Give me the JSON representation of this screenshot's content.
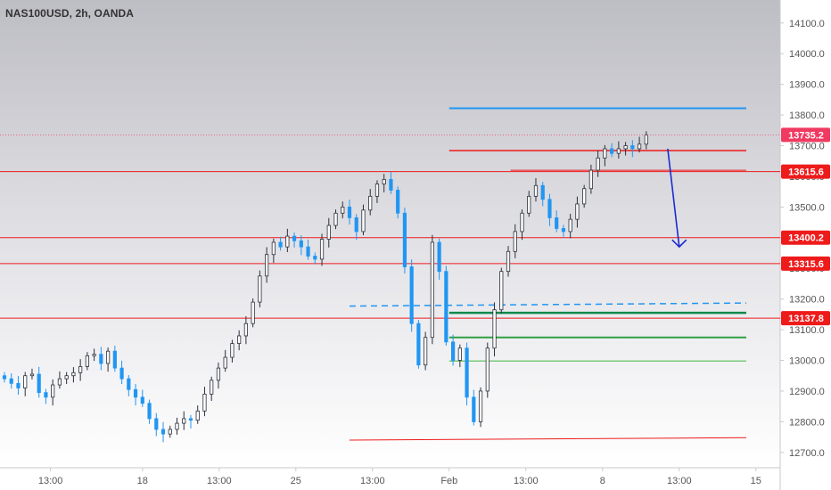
{
  "symbol_title": "NAS100USD, 2h, OANDA",
  "colors": {
    "up": "#2b2f3a",
    "down": "#2196f3",
    "red_line": "#ee1b1b",
    "blue_line": "#2196f3",
    "dark_green": "#0b8a4c",
    "mid_green": "#2ea043",
    "light_green": "#79c97b",
    "arrow": "#1a2bd1",
    "axis_text": "#555555",
    "label_bg": "#ee1b1b",
    "current_label_bg": "#f03a62"
  },
  "chart_data": {
    "type": "candlestick",
    "symbol": "NAS100USD",
    "interval": "2h",
    "source": "OANDA",
    "ylim": [
      12650,
      14175
    ],
    "y_ticks": [
      "14100.0",
      "14000.0",
      "13900.0",
      "13800.0",
      "13700.0",
      "13600.0",
      "13500.0",
      "13400.0",
      "13300.0",
      "13200.0",
      "13100.0",
      "13000.0",
      "12900.0",
      "12800.0",
      "12700.0"
    ],
    "x_ticks": [
      "13:00",
      "18",
      "13:00",
      "25",
      "13:00",
      "Feb",
      "13:00",
      "8",
      "13:00",
      "15"
    ],
    "x_tick_index": [
      6,
      18,
      28,
      38,
      48,
      58,
      68,
      78,
      88,
      98
    ],
    "x_range": [
      0,
      100
    ],
    "price_labels": [
      {
        "text": "13735.2",
        "value": 13735.2,
        "current": true
      },
      {
        "text": "13615.6",
        "value": 13615.6
      },
      {
        "text": "13400.2",
        "value": 13400.2
      },
      {
        "text": "13315.6",
        "value": 13315.6
      },
      {
        "text": "13137.8",
        "value": 13137.8
      }
    ],
    "hlines": [
      {
        "value": 13615.6,
        "x0": 0,
        "x1": 100,
        "color": "red"
      },
      {
        "value": 13400.2,
        "x0": 0,
        "x1": 100,
        "color": "red"
      },
      {
        "value": 13315.6,
        "x0": 0,
        "x1": 100,
        "color": "red"
      },
      {
        "value": 13137.8,
        "x0": 0,
        "x1": 100,
        "color": "red"
      }
    ],
    "segments": [
      {
        "x0": 58,
        "y0": 13822,
        "x1": 101,
        "y1": 13822,
        "color": "blue",
        "width": 2
      },
      {
        "x0": 58,
        "y0": 13684,
        "x1": 101,
        "y1": 13684,
        "color": "red",
        "width": 1.5
      },
      {
        "x0": 66,
        "y0": 13620,
        "x1": 98,
        "y1": 13620,
        "color": "red",
        "width": 1
      },
      {
        "x0": 45,
        "y0": 13177,
        "x1": 98,
        "y1": 13187,
        "color": "blue",
        "width": 1.5,
        "dash": true
      },
      {
        "x0": 58,
        "y0": 13155,
        "x1": 101,
        "y1": 13155,
        "color": "dark_green",
        "width": 2.5
      },
      {
        "x0": 58,
        "y0": 13075,
        "x1": 101,
        "y1": 13075,
        "color": "mid_green",
        "width": 2
      },
      {
        "x0": 58,
        "y0": 12998,
        "x1": 101,
        "y1": 12998,
        "color": "light_green",
        "width": 1.5
      },
      {
        "x0": 45,
        "y0": 12740,
        "x1": 98,
        "y1": 12748,
        "color": "red",
        "width": 1
      }
    ],
    "arrow": {
      "x0": 86.5,
      "y0": 13690,
      "x1": 88,
      "y1": 13370
    },
    "closes": [
      12940,
      12925,
      12910,
      12950,
      12955,
      12895,
      12880,
      12920,
      12940,
      12950,
      12960,
      12980,
      13015,
      13020,
      12990,
      13030,
      12975,
      12940,
      12905,
      12880,
      12860,
      12810,
      12775,
      12760,
      12775,
      12795,
      12810,
      12805,
      12835,
      12890,
      12935,
      12975,
      13010,
      13055,
      13080,
      13120,
      13190,
      13275,
      13345,
      13385,
      13370,
      13405,
      13390,
      13370,
      13340,
      13330,
      13395,
      13440,
      13480,
      13500,
      13465,
      13420,
      13490,
      13535,
      13575,
      13590,
      13555,
      13480,
      13305,
      13120,
      12985,
      13075,
      13385,
      13290,
      13060,
      13000,
      13040,
      12880,
      12800,
      12900,
      13040,
      13165,
      13290,
      13355,
      13420,
      13480,
      13535,
      13570,
      13525,
      13465,
      13430,
      13420,
      13460,
      13510,
      13560,
      13620,
      13660,
      13690,
      13675,
      13690,
      13700,
      13690,
      13705,
      13735
    ],
    "x_start": 0,
    "x_step": 0.9
  }
}
